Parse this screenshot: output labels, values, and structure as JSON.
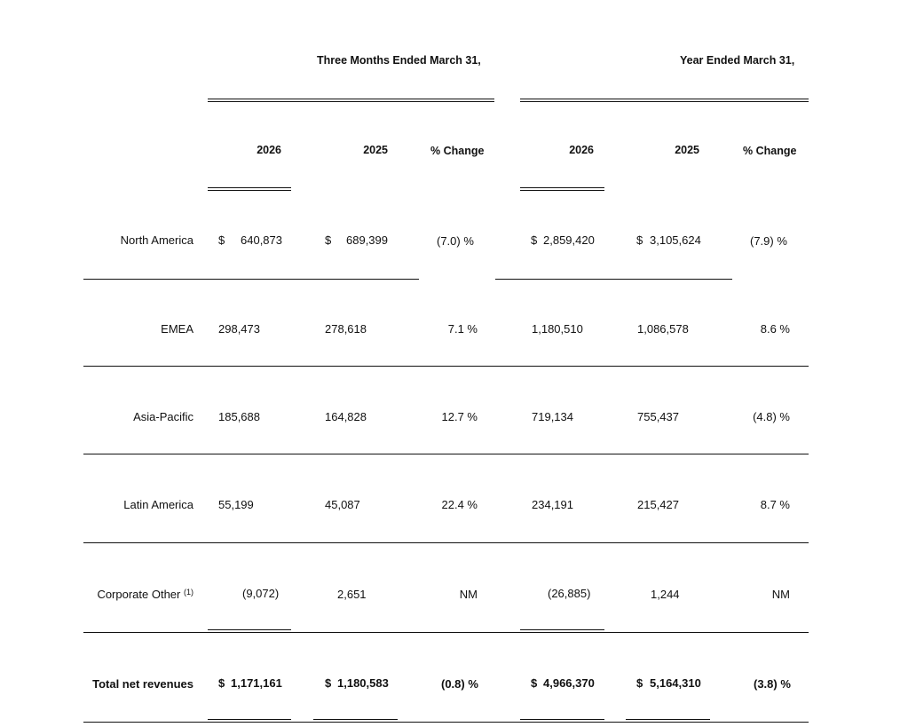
{
  "header": {
    "group_three_months": "Three Months Ended March 31,",
    "group_year": "Year Ended March 31,",
    "columns": [
      "2026",
      "2025",
      "% Change",
      "2026",
      "2025",
      "% Change"
    ]
  },
  "rows": [
    {
      "label": "North America",
      "q2026_sign": "$",
      "q2026": "640,873",
      "q2025_sign": "$",
      "q2025": "689,399",
      "q_change": "(7.0) %",
      "y2026_sign": "$",
      "y2026": "2,859,420",
      "y2025_sign": "$",
      "y2025": "3,105,624",
      "y_change": "(7.9) %"
    },
    {
      "label": "EMEA",
      "q2026": "298,473",
      "q2025": "278,618",
      "q_change": "7.1 %",
      "y2026": "1,180,510",
      "y2025": "1,086,578",
      "y_change": "8.6 %"
    },
    {
      "label": "Asia-Pacific",
      "q2026": "185,688",
      "q2025": "164,828",
      "q_change": "12.7 %",
      "y2026": "719,134",
      "y2025": "755,437",
      "y_change": "(4.8) %"
    },
    {
      "label": "Latin America",
      "q2026": "55,199",
      "q2025": "45,087",
      "q_change": "22.4 %",
      "y2026": "234,191",
      "y2025": "215,427",
      "y_change": "8.7 %"
    },
    {
      "label": "Corporate Other",
      "label_sup": "(1)",
      "q2026": "(9,072)",
      "q2025": "2,651",
      "q_change": "NM",
      "y2026": "(26,885)",
      "y2025": "1,244",
      "y_change": "NM"
    },
    {
      "label": "Total net revenues",
      "q2026_sign": "$",
      "q2026": "1,171,161",
      "q2025_sign": "$",
      "q2025": "1,180,583",
      "q_change": "(0.8) %",
      "y2026_sign": "$",
      "y2026": "4,966,370",
      "y2025_sign": "$",
      "y2025": "5,164,310",
      "y_change": "(3.8) %"
    }
  ]
}
